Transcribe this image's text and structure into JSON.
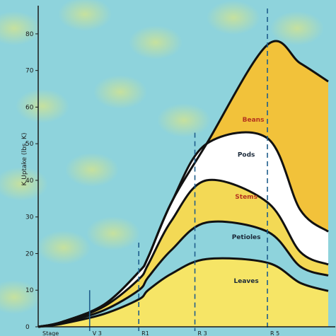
{
  "chart_data": {
    "type": "area",
    "ylabel": "K Uptake (lbs. K)",
    "ylim": [
      0,
      85
    ],
    "yticks": [
      0,
      10,
      20,
      30,
      40,
      50,
      60,
      70,
      80
    ],
    "x": [
      0,
      0.5,
      1.4,
      2.15,
      2.35,
      2.85,
      3.6,
      4.9,
      5.6,
      6.2
    ],
    "xlim": [
      0,
      6.2
    ],
    "stage_axis_label": "Stage",
    "stage_markers": [
      {
        "x": 1.1,
        "label": "V 3",
        "style": "solid"
      },
      {
        "x": 2.15,
        "label": "R1",
        "style": "dashed"
      },
      {
        "x": 3.35,
        "label": "R 3",
        "style": "dashed"
      },
      {
        "x": 4.9,
        "label": "R 5",
        "style": "dashed"
      }
    ],
    "layer_order": [
      "Leaves",
      "Petioles",
      "Stems",
      "Pods",
      "Beans"
    ],
    "layer_colors": {
      "Leaves": "#f6e566",
      "Petioles": "#8ed3dc",
      "Stems": "#f3d955",
      "Pods": "#ffffff",
      "Beans": "#f2c23a"
    },
    "label_colors": {
      "Beans": "#b5341f",
      "Pods": "#1b2a3a",
      "Stems": "#b5341f",
      "Petioles": "#1b2a3a",
      "Leaves": "#1b2a3a"
    },
    "label_positions": {
      "Beans": {
        "x": 4.9,
        "y": 56
      },
      "Pods": {
        "x": 4.75,
        "y": 46.5
      },
      "Stems": {
        "x": 4.75,
        "y": 35
      },
      "Petioles": {
        "x": 4.75,
        "y": 24
      },
      "Leaves": {
        "x": 4.75,
        "y": 12
      }
    },
    "series": [
      {
        "name": "Leaves",
        "cumulative": [
          0,
          0.8,
          3.5,
          7.5,
          10,
          14.5,
          18.5,
          17.5,
          12,
          9.8
        ]
      },
      {
        "name": "Petioles",
        "cumulative": [
          0,
          1,
          4.5,
          10,
          13.5,
          21,
          28.5,
          26,
          16.5,
          14
        ]
      },
      {
        "name": "Stems",
        "cumulative": [
          0,
          1.2,
          5.5,
          13,
          17,
          29,
          40,
          34,
          20.5,
          17
        ]
      },
      {
        "name": "Pods",
        "cumulative": [
          0,
          1.3,
          6,
          15,
          19,
          34,
          50,
          51.5,
          32,
          26
        ]
      },
      {
        "name": "Beans",
        "cumulative": [
          0,
          1.3,
          6,
          15,
          19,
          34,
          50,
          77,
          72,
          67
        ]
      }
    ]
  }
}
